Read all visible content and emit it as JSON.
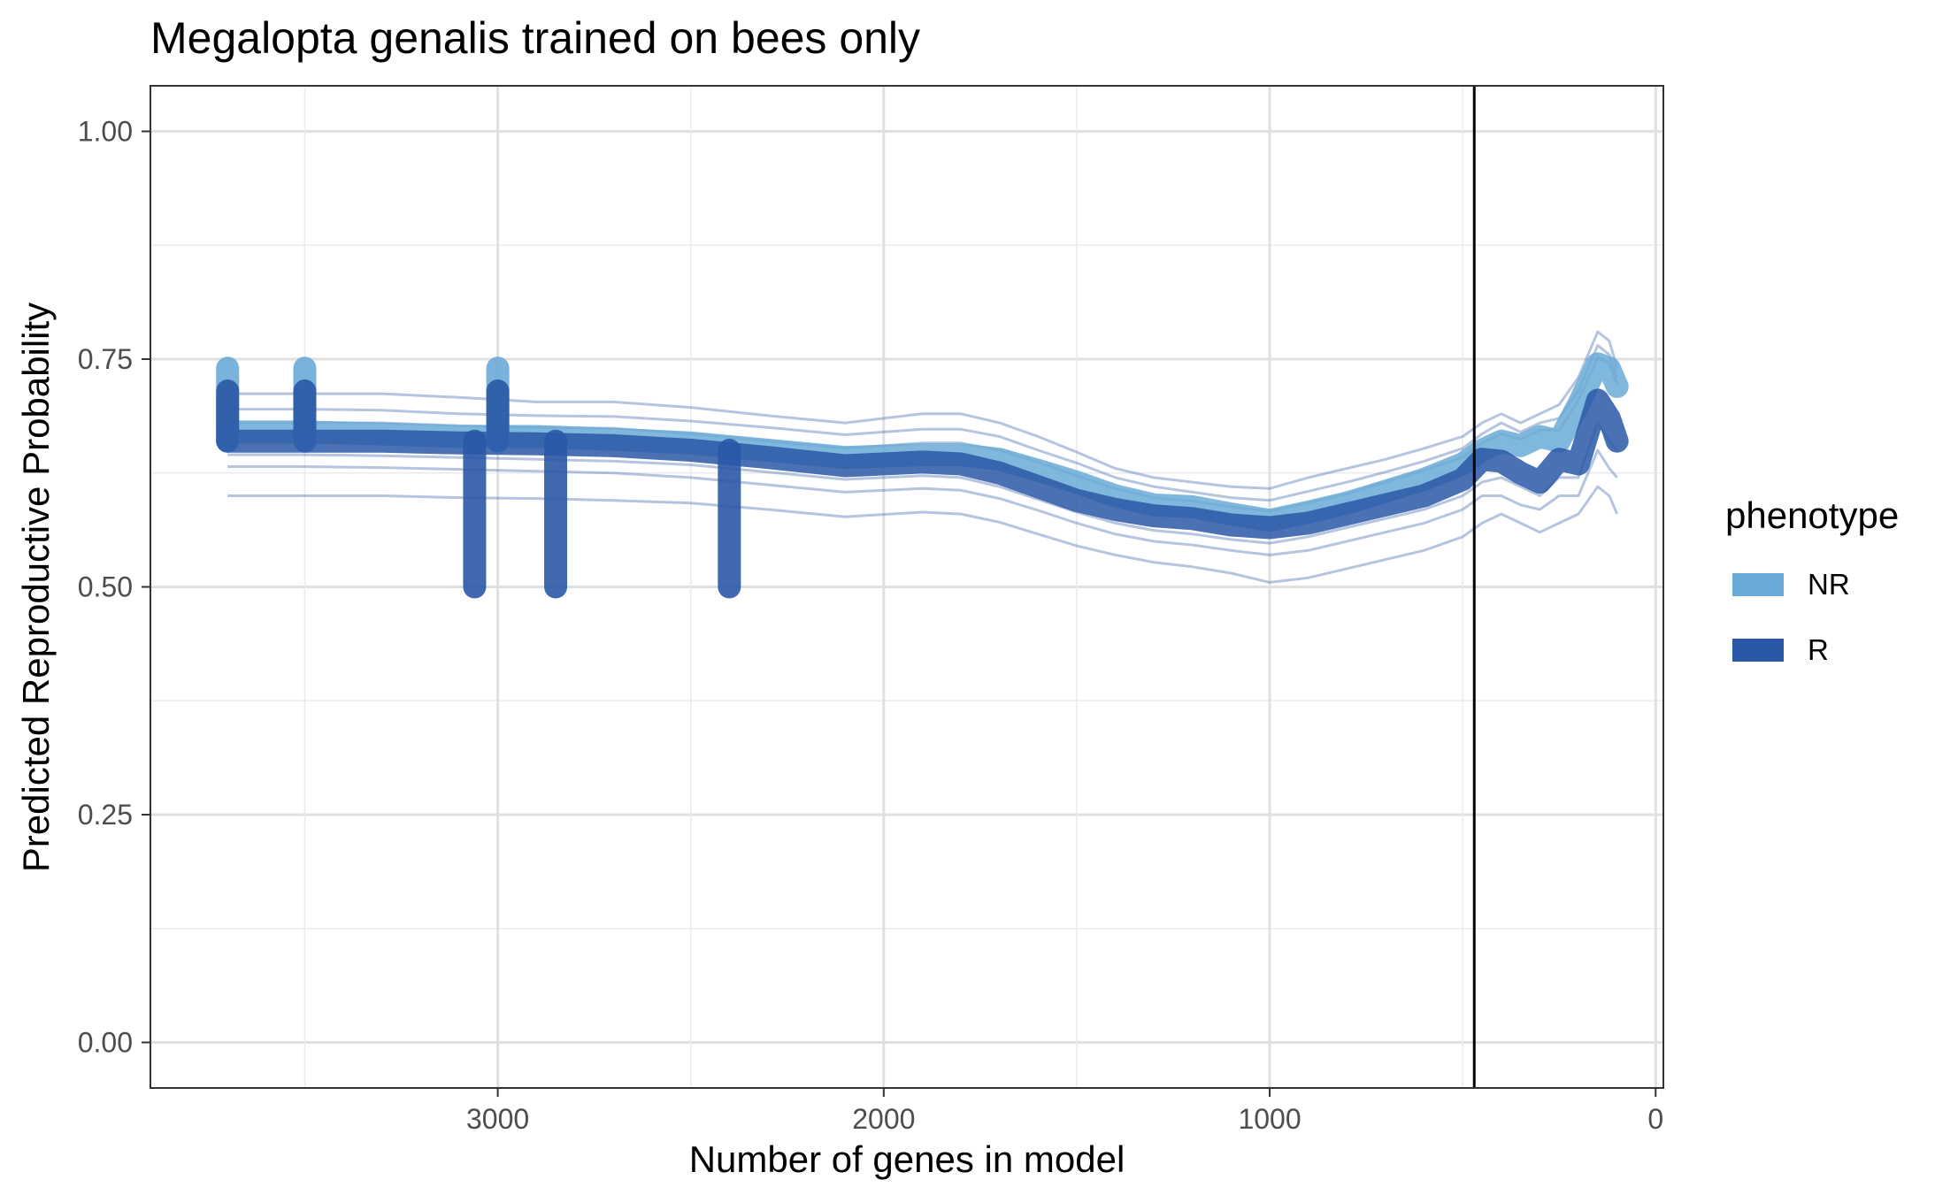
{
  "chart_data": {
    "type": "line",
    "title": "Megalopta genalis trained on bees only",
    "xlabel": "Number of genes in model",
    "ylabel": "Predicted Reproductive Probability",
    "x_reversed": true,
    "xlim": [
      3900,
      -20
    ],
    "ylim": [
      -0.05,
      1.05
    ],
    "x_ticks": [
      3000,
      2000,
      1000,
      0
    ],
    "x_tick_labels": [
      "3000",
      "2000",
      "1000",
      "0"
    ],
    "y_ticks": [
      0,
      0.25,
      0.5,
      0.75,
      1
    ],
    "y_tick_labels": [
      "0.00",
      "0.25",
      "0.50",
      "0.75",
      "1.00"
    ],
    "grid": true,
    "reference_line": {
      "x": 470,
      "color": "#000000"
    },
    "legend": {
      "title": "phenotype",
      "position": "right",
      "entries": [
        {
          "label": "NR",
          "color": "#6aaad6"
        },
        {
          "label": "R",
          "color": "#2a58a6"
        }
      ]
    },
    "x": [
      3700,
      3500,
      3300,
      3100,
      2900,
      2700,
      2500,
      2300,
      2100,
      1900,
      1800,
      1700,
      1600,
      1500,
      1400,
      1300,
      1200,
      1100,
      1000,
      900,
      800,
      700,
      600,
      500,
      450,
      400,
      350,
      300,
      250,
      200,
      150,
      120,
      100
    ],
    "series": [
      {
        "name": "NR",
        "color": "#6aaad6",
        "values": [
          0.67,
          0.67,
          0.668,
          0.665,
          0.665,
          0.662,
          0.658,
          0.65,
          0.642,
          0.645,
          0.645,
          0.64,
          0.628,
          0.615,
          0.6,
          0.59,
          0.588,
          0.58,
          0.573,
          0.582,
          0.592,
          0.605,
          0.618,
          0.635,
          0.65,
          0.66,
          0.655,
          0.665,
          0.66,
          0.7,
          0.745,
          0.74,
          0.72
        ]
      },
      {
        "name": "R",
        "color": "#2a58a6",
        "values": [
          0.66,
          0.66,
          0.66,
          0.658,
          0.657,
          0.655,
          0.65,
          0.642,
          0.633,
          0.637,
          0.635,
          0.625,
          0.61,
          0.595,
          0.585,
          0.578,
          0.575,
          0.568,
          0.565,
          0.57,
          0.58,
          0.59,
          0.6,
          0.618,
          0.64,
          0.638,
          0.625,
          0.615,
          0.64,
          0.635,
          0.705,
          0.685,
          0.66
        ]
      }
    ],
    "replicates": [
      {
        "color": "#2a58a6",
        "values": [
          0.712,
          0.712,
          0.712,
          0.708,
          0.703,
          0.703,
          0.697,
          0.688,
          0.68,
          0.69,
          0.69,
          0.68,
          0.665,
          0.648,
          0.63,
          0.62,
          0.615,
          0.61,
          0.608,
          0.62,
          0.63,
          0.64,
          0.652,
          0.665,
          0.68,
          0.69,
          0.68,
          0.69,
          0.7,
          0.73,
          0.78,
          0.77,
          0.74
        ]
      },
      {
        "color": "#2a58a6",
        "values": [
          0.695,
          0.695,
          0.694,
          0.69,
          0.688,
          0.687,
          0.682,
          0.675,
          0.667,
          0.673,
          0.673,
          0.665,
          0.65,
          0.636,
          0.62,
          0.61,
          0.604,
          0.598,
          0.595,
          0.605,
          0.615,
          0.626,
          0.638,
          0.652,
          0.668,
          0.68,
          0.67,
          0.68,
          0.685,
          0.715,
          0.765,
          0.755,
          0.73
        ]
      },
      {
        "color": "#2a58a6",
        "values": [
          0.68,
          0.68,
          0.68,
          0.677,
          0.675,
          0.674,
          0.668,
          0.66,
          0.652,
          0.658,
          0.658,
          0.65,
          0.637,
          0.622,
          0.608,
          0.598,
          0.594,
          0.588,
          0.583,
          0.592,
          0.602,
          0.615,
          0.628,
          0.642,
          0.658,
          0.668,
          0.662,
          0.672,
          0.672,
          0.705,
          0.752,
          0.745,
          0.722
        ]
      },
      {
        "color": "#2a58a6",
        "values": [
          0.645,
          0.645,
          0.644,
          0.642,
          0.64,
          0.638,
          0.634,
          0.626,
          0.618,
          0.622,
          0.62,
          0.61,
          0.596,
          0.582,
          0.57,
          0.562,
          0.558,
          0.552,
          0.548,
          0.555,
          0.565,
          0.575,
          0.585,
          0.6,
          0.615,
          0.62,
          0.61,
          0.6,
          0.62,
          0.62,
          0.68,
          0.66,
          0.65
        ]
      },
      {
        "color": "#2a58a6",
        "values": [
          0.632,
          0.632,
          0.631,
          0.629,
          0.627,
          0.625,
          0.62,
          0.612,
          0.604,
          0.608,
          0.606,
          0.597,
          0.584,
          0.57,
          0.558,
          0.55,
          0.546,
          0.54,
          0.535,
          0.54,
          0.55,
          0.56,
          0.57,
          0.585,
          0.6,
          0.6,
          0.59,
          0.585,
          0.6,
          0.6,
          0.65,
          0.63,
          0.62
        ]
      },
      {
        "color": "#2a58a6",
        "values": [
          0.6,
          0.6,
          0.6,
          0.598,
          0.597,
          0.595,
          0.592,
          0.585,
          0.577,
          0.582,
          0.58,
          0.571,
          0.558,
          0.545,
          0.535,
          0.527,
          0.522,
          0.515,
          0.505,
          0.51,
          0.52,
          0.53,
          0.54,
          0.555,
          0.57,
          0.58,
          0.57,
          0.56,
          0.57,
          0.58,
          0.61,
          0.6,
          0.58
        ]
      }
    ],
    "spikes": [
      {
        "x": 3700,
        "from": 0.66,
        "to": 0.74,
        "color": "#6aaad6"
      },
      {
        "x": 3700,
        "from": 0.66,
        "to": 0.715,
        "color": "#2a58a6"
      },
      {
        "x": 3500,
        "from": 0.66,
        "to": 0.74,
        "color": "#6aaad6"
      },
      {
        "x": 3500,
        "from": 0.66,
        "to": 0.715,
        "color": "#2a58a6"
      },
      {
        "x": 3000,
        "from": 0.66,
        "to": 0.74,
        "color": "#6aaad6"
      },
      {
        "x": 3000,
        "from": 0.66,
        "to": 0.715,
        "color": "#2a58a6"
      },
      {
        "x": 3060,
        "from": 0.66,
        "to": 0.5,
        "color": "#2a58a6"
      },
      {
        "x": 2850,
        "from": 0.66,
        "to": 0.5,
        "color": "#2a58a6"
      },
      {
        "x": 2400,
        "from": 0.65,
        "to": 0.5,
        "color": "#2a58a6"
      }
    ]
  }
}
